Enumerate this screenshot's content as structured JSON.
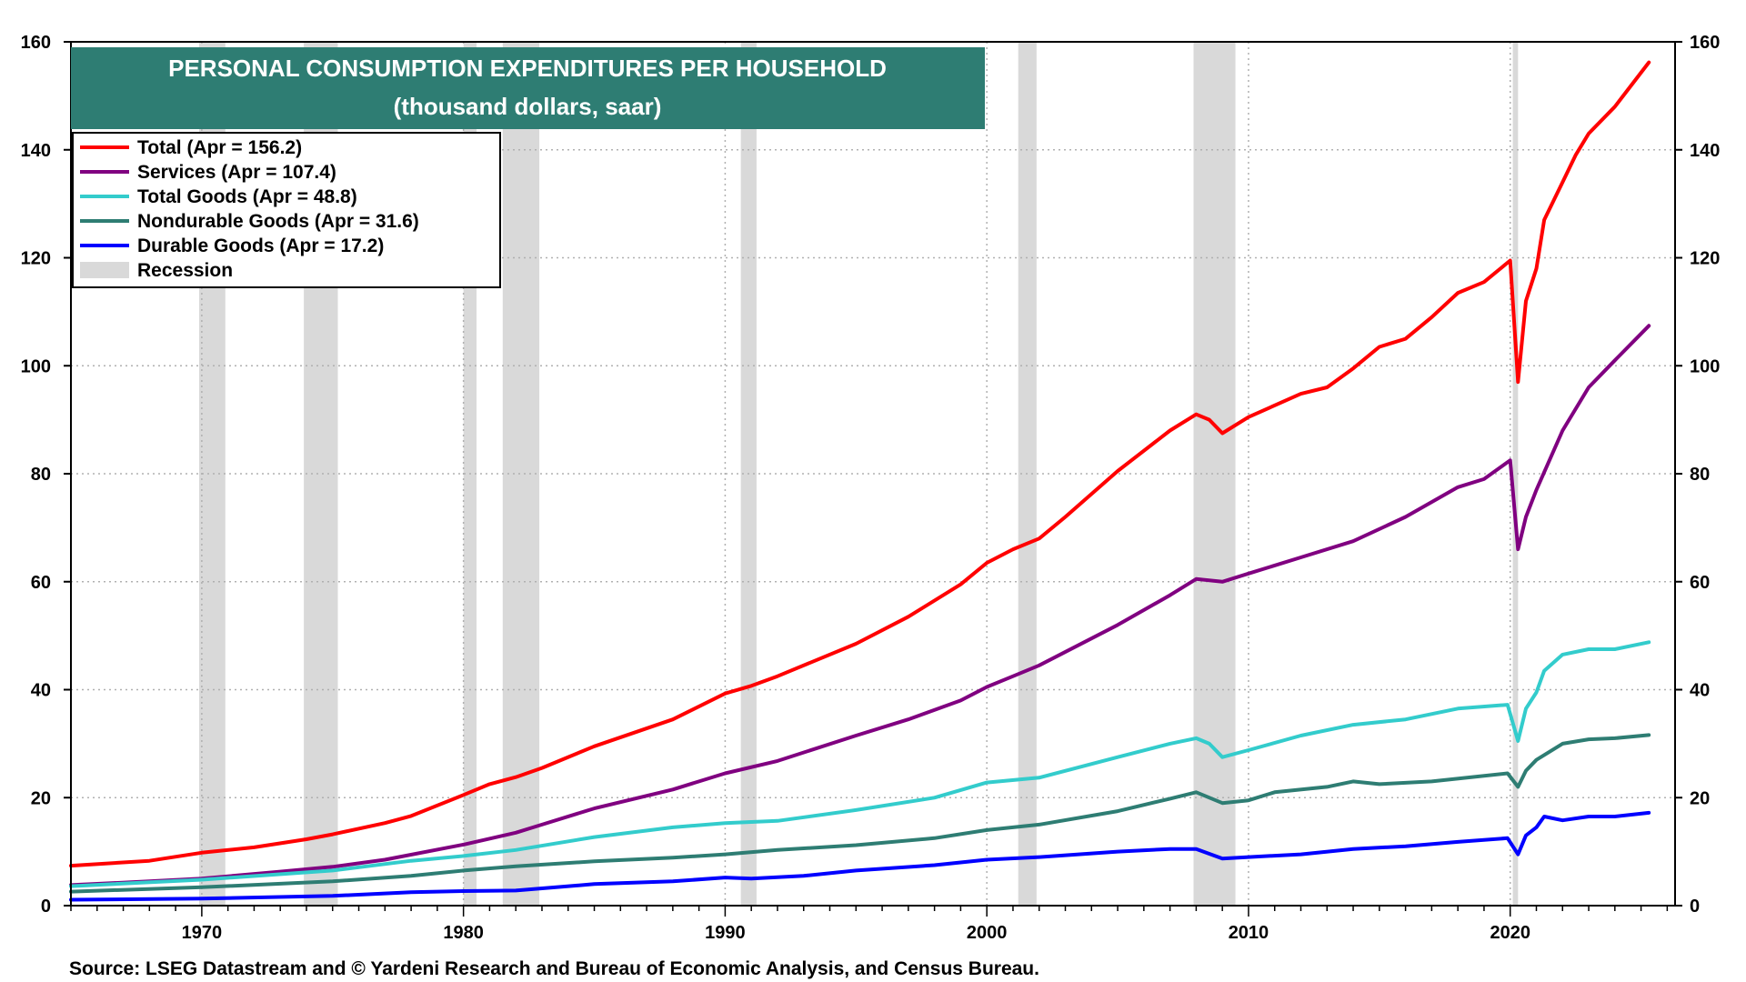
{
  "chart_data": {
    "type": "line",
    "title": "PERSONAL CONSUMPTION EXPENDITURES PER HOUSEHOLD",
    "subtitle": "(thousand dollars, saar)",
    "xlim": [
      1965.0,
      2026.3
    ],
    "ylim": [
      0,
      160
    ],
    "x_ticks": [
      "1970",
      "1980",
      "1990",
      "2000",
      "2010",
      "2020"
    ],
    "y_ticks": [
      "0",
      "20",
      "40",
      "60",
      "80",
      "100",
      "120",
      "140",
      "160"
    ],
    "grid": true,
    "legend_position": "top-left",
    "recession_label": "Recession",
    "recessions": [
      [
        1969.9,
        1970.9
      ],
      [
        1973.9,
        1975.2
      ],
      [
        1980.0,
        1980.5
      ],
      [
        1981.5,
        1982.9
      ],
      [
        1990.6,
        1991.2
      ],
      [
        2001.2,
        2001.9
      ],
      [
        2007.9,
        2009.5
      ],
      [
        2020.1,
        2020.3
      ]
    ],
    "series": [
      {
        "name": "Total (Apr = 156.2)",
        "color": "#ff0000",
        "points": [
          [
            1965,
            7.4
          ],
          [
            1968,
            8.3
          ],
          [
            1970,
            9.8
          ],
          [
            1972,
            10.8
          ],
          [
            1974,
            12.3
          ],
          [
            1975,
            13.2
          ],
          [
            1977,
            15.3
          ],
          [
            1978,
            16.6
          ],
          [
            1980,
            20.5
          ],
          [
            1981,
            22.5
          ],
          [
            1982,
            23.8
          ],
          [
            1983,
            25.5
          ],
          [
            1985,
            29.5
          ],
          [
            1988,
            34.5
          ],
          [
            1990,
            39.3
          ],
          [
            1991,
            40.7
          ],
          [
            1992,
            42.5
          ],
          [
            1995,
            48.5
          ],
          [
            1997,
            53.5
          ],
          [
            1999,
            59.5
          ],
          [
            2000,
            63.5
          ],
          [
            2001,
            66.0
          ],
          [
            2002,
            68.0
          ],
          [
            2003,
            72.0
          ],
          [
            2005,
            80.5
          ],
          [
            2007,
            88.0
          ],
          [
            2008,
            91.0
          ],
          [
            2008.5,
            90.0
          ],
          [
            2009,
            87.5
          ],
          [
            2010,
            90.5
          ],
          [
            2012,
            94.8
          ],
          [
            2013,
            96.0
          ],
          [
            2014,
            99.5
          ],
          [
            2015,
            103.5
          ],
          [
            2016,
            105.0
          ],
          [
            2017,
            109.0
          ],
          [
            2018,
            113.5
          ],
          [
            2019,
            115.5
          ],
          [
            2020.0,
            119.5
          ],
          [
            2020.3,
            97.0
          ],
          [
            2020.6,
            112.0
          ],
          [
            2021,
            118.0
          ],
          [
            2021.3,
            127.0
          ],
          [
            2022,
            134.0
          ],
          [
            2022.5,
            139.0
          ],
          [
            2023,
            143.0
          ],
          [
            2024,
            148.0
          ],
          [
            2025.3,
            156.2
          ]
        ]
      },
      {
        "name": "Services (Apr = 107.4)",
        "color": "#800080",
        "points": [
          [
            1965,
            3.8
          ],
          [
            1968,
            4.5
          ],
          [
            1970,
            5.0
          ],
          [
            1973,
            6.3
          ],
          [
            1975,
            7.2
          ],
          [
            1977,
            8.5
          ],
          [
            1980,
            11.3
          ],
          [
            1982,
            13.5
          ],
          [
            1983,
            15.0
          ],
          [
            1985,
            18.0
          ],
          [
            1988,
            21.5
          ],
          [
            1990,
            24.5
          ],
          [
            1992,
            26.8
          ],
          [
            1995,
            31.5
          ],
          [
            1997,
            34.5
          ],
          [
            1999,
            38.0
          ],
          [
            2000,
            40.5
          ],
          [
            2001,
            42.5
          ],
          [
            2002,
            44.5
          ],
          [
            2005,
            52.0
          ],
          [
            2007,
            57.5
          ],
          [
            2008,
            60.5
          ],
          [
            2009,
            60.0
          ],
          [
            2010,
            61.5
          ],
          [
            2012,
            64.5
          ],
          [
            2014,
            67.5
          ],
          [
            2016,
            72.0
          ],
          [
            2018,
            77.5
          ],
          [
            2019,
            79.0
          ],
          [
            2020.0,
            82.5
          ],
          [
            2020.3,
            66.0
          ],
          [
            2020.6,
            72.0
          ],
          [
            2021,
            77.0
          ],
          [
            2022,
            88.0
          ],
          [
            2023,
            96.0
          ],
          [
            2024,
            101.0
          ],
          [
            2025.3,
            107.4
          ]
        ]
      },
      {
        "name": "Total Goods (Apr = 48.8)",
        "color": "#33cccc",
        "points": [
          [
            1965,
            3.6
          ],
          [
            1970,
            4.8
          ],
          [
            1975,
            6.5
          ],
          [
            1978,
            8.3
          ],
          [
            1980,
            9.2
          ],
          [
            1982,
            10.3
          ],
          [
            1985,
            12.7
          ],
          [
            1988,
            14.5
          ],
          [
            1990,
            15.3
          ],
          [
            1992,
            15.7
          ],
          [
            1995,
            17.7
          ],
          [
            1998,
            20.0
          ],
          [
            2000,
            22.8
          ],
          [
            2002,
            23.7
          ],
          [
            2005,
            27.5
          ],
          [
            2007,
            30.0
          ],
          [
            2008,
            31.0
          ],
          [
            2008.5,
            30.0
          ],
          [
            2009,
            27.5
          ],
          [
            2010,
            28.8
          ],
          [
            2012,
            31.5
          ],
          [
            2014,
            33.5
          ],
          [
            2016,
            34.5
          ],
          [
            2018,
            36.5
          ],
          [
            2019.9,
            37.2
          ],
          [
            2020.3,
            30.5
          ],
          [
            2020.6,
            36.5
          ],
          [
            2021,
            39.5
          ],
          [
            2021.3,
            43.5
          ],
          [
            2022,
            46.5
          ],
          [
            2023,
            47.5
          ],
          [
            2024,
            47.5
          ],
          [
            2025.3,
            48.8
          ]
        ]
      },
      {
        "name": "Nondurable Goods (Apr = 31.6)",
        "color": "#2e7d73",
        "points": [
          [
            1965,
            2.6
          ],
          [
            1970,
            3.4
          ],
          [
            1975,
            4.5
          ],
          [
            1978,
            5.5
          ],
          [
            1980,
            6.5
          ],
          [
            1982,
            7.3
          ],
          [
            1985,
            8.2
          ],
          [
            1988,
            8.9
          ],
          [
            1990,
            9.5
          ],
          [
            1992,
            10.3
          ],
          [
            1995,
            11.2
          ],
          [
            1998,
            12.5
          ],
          [
            2000,
            14.0
          ],
          [
            2002,
            15.0
          ],
          [
            2005,
            17.5
          ],
          [
            2007,
            19.8
          ],
          [
            2008,
            21.0
          ],
          [
            2009,
            19.0
          ],
          [
            2010,
            19.5
          ],
          [
            2011,
            21.0
          ],
          [
            2013,
            22.0
          ],
          [
            2014,
            23.0
          ],
          [
            2015,
            22.5
          ],
          [
            2017,
            23.0
          ],
          [
            2019.9,
            24.5
          ],
          [
            2020.3,
            22.0
          ],
          [
            2020.6,
            25.0
          ],
          [
            2021,
            27.0
          ],
          [
            2022,
            30.0
          ],
          [
            2023,
            30.8
          ],
          [
            2024,
            31.0
          ],
          [
            2025.3,
            31.6
          ]
        ]
      },
      {
        "name": "Durable Goods (Apr = 17.2)",
        "color": "#0000ff",
        "points": [
          [
            1965,
            1.1
          ],
          [
            1970,
            1.3
          ],
          [
            1975,
            1.8
          ],
          [
            1978,
            2.5
          ],
          [
            1980,
            2.7
          ],
          [
            1982,
            2.8
          ],
          [
            1985,
            4.0
          ],
          [
            1988,
            4.5
          ],
          [
            1990,
            5.2
          ],
          [
            1991,
            5.0
          ],
          [
            1993,
            5.5
          ],
          [
            1995,
            6.5
          ],
          [
            1998,
            7.5
          ],
          [
            2000,
            8.5
          ],
          [
            2002,
            9.0
          ],
          [
            2005,
            10.0
          ],
          [
            2007,
            10.5
          ],
          [
            2008,
            10.5
          ],
          [
            2009,
            8.7
          ],
          [
            2010,
            9.0
          ],
          [
            2012,
            9.5
          ],
          [
            2014,
            10.5
          ],
          [
            2016,
            11.0
          ],
          [
            2018,
            11.8
          ],
          [
            2019.9,
            12.5
          ],
          [
            2020.3,
            9.5
          ],
          [
            2020.6,
            13.0
          ],
          [
            2021,
            14.5
          ],
          [
            2021.3,
            16.5
          ],
          [
            2022,
            15.8
          ],
          [
            2023,
            16.5
          ],
          [
            2024,
            16.5
          ],
          [
            2025.3,
            17.2
          ]
        ]
      }
    ],
    "source": "Source: LSEG Datastream and © Yardeni Research and Bureau of Economic Analysis, and Census Bureau."
  }
}
